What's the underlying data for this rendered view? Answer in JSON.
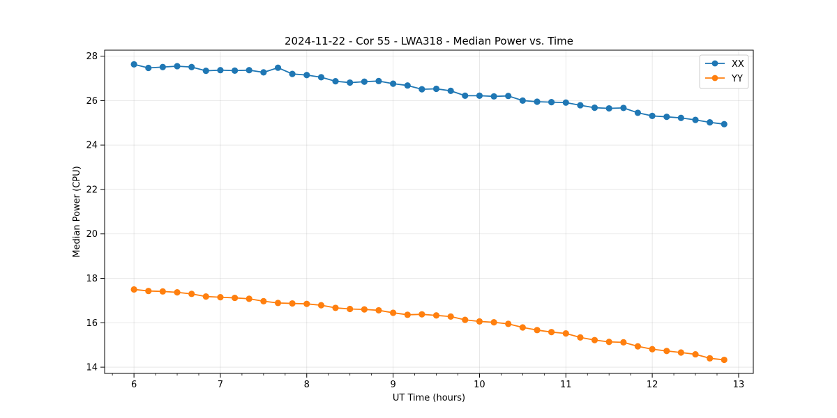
{
  "chart_data": {
    "type": "line",
    "title": "2024-11-22 - Cor 55 - LWA318 - Median Power vs. Time",
    "xlabel": "UT Time (hours)",
    "ylabel": "Median Power (CPU)",
    "xlim": [
      5.66,
      13.17
    ],
    "ylim": [
      13.72,
      28.27
    ],
    "grid": true,
    "legend_position": "top-right",
    "x_ticks": [
      6,
      7,
      8,
      9,
      10,
      11,
      12,
      13
    ],
    "x_tick_labels": [
      "6",
      "7",
      "8",
      "9",
      "10",
      "11",
      "12",
      "13"
    ],
    "y_ticks": [
      14,
      16,
      18,
      20,
      22,
      24,
      26,
      28
    ],
    "y_tick_labels": [
      "14",
      "16",
      "18",
      "20",
      "22",
      "24",
      "26",
      "28"
    ],
    "x": [
      6.0,
      6.167,
      6.333,
      6.5,
      6.667,
      6.833,
      7.0,
      7.167,
      7.333,
      7.5,
      7.667,
      7.833,
      8.0,
      8.167,
      8.333,
      8.5,
      8.667,
      8.833,
      9.0,
      9.167,
      9.333,
      9.5,
      9.667,
      9.833,
      10.0,
      10.167,
      10.333,
      10.5,
      10.667,
      10.833,
      11.0,
      11.167,
      11.333,
      11.5,
      11.667,
      11.833,
      12.0,
      12.167,
      12.333,
      12.5,
      12.667,
      12.833
    ],
    "series": [
      {
        "name": "XX",
        "color": "#1f77b4",
        "values": [
          27.63,
          27.47,
          27.51,
          27.55,
          27.51,
          27.34,
          27.37,
          27.35,
          27.37,
          27.27,
          27.48,
          27.2,
          27.15,
          27.05,
          26.87,
          26.81,
          26.85,
          26.88,
          26.76,
          26.68,
          26.51,
          26.53,
          26.44,
          26.22,
          26.22,
          26.19,
          26.21,
          26.0,
          25.95,
          25.93,
          25.91,
          25.79,
          25.68,
          25.65,
          25.67,
          25.45,
          25.31,
          25.27,
          25.22,
          25.13,
          25.02,
          24.94
        ]
      },
      {
        "name": "YY",
        "color": "#ff7f0e",
        "values": [
          17.5,
          17.43,
          17.41,
          17.37,
          17.3,
          17.18,
          17.15,
          17.12,
          17.08,
          16.97,
          16.89,
          16.87,
          16.85,
          16.79,
          16.67,
          16.62,
          16.6,
          16.56,
          16.45,
          16.36,
          16.38,
          16.33,
          16.28,
          16.13,
          16.06,
          16.02,
          15.95,
          15.79,
          15.67,
          15.58,
          15.52,
          15.34,
          15.22,
          15.14,
          15.12,
          14.94,
          14.81,
          14.73,
          14.66,
          14.58,
          14.4,
          14.33
        ]
      }
    ]
  }
}
